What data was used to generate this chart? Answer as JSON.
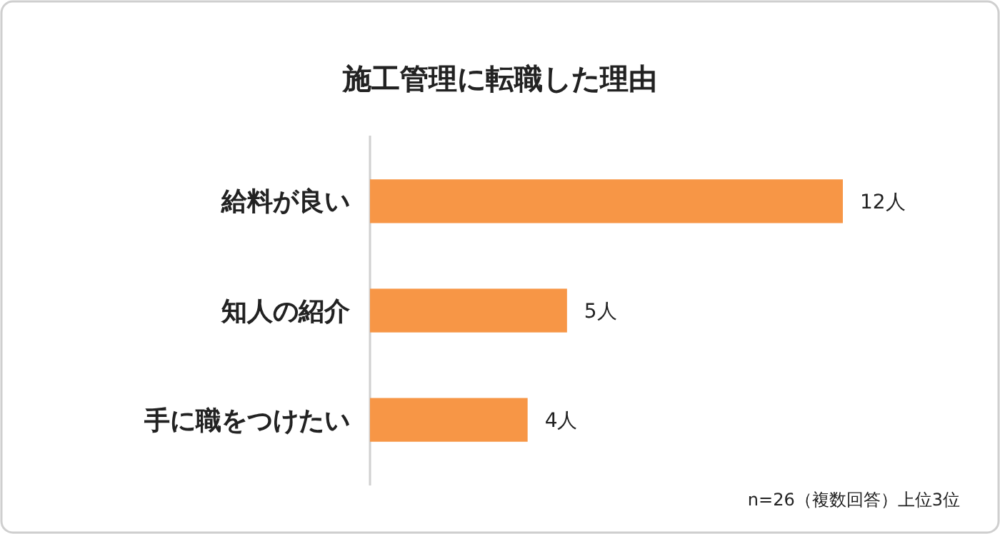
{
  "chart_data": {
    "type": "bar",
    "orientation": "horizontal",
    "title": "施工管理に転職した理由",
    "categories": [
      "給料が良い",
      "知人の紹介",
      "手に職をつけたい"
    ],
    "values": [
      12,
      5,
      4
    ],
    "value_labels": [
      "12人",
      "5人",
      "4人"
    ],
    "color": "#f79646",
    "annotations": [
      "n=26（複数回答）上位3位"
    ]
  }
}
